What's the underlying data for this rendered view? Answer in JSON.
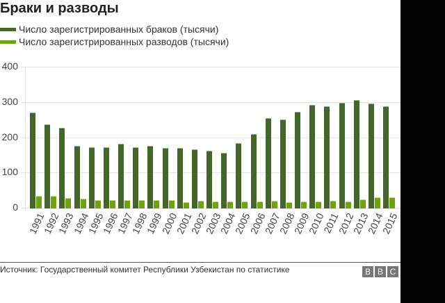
{
  "title": "Браки и разводы",
  "legend": [
    {
      "label": "Число зарегистрированных браков (тысячи)",
      "color": "#45662a"
    },
    {
      "label": "Число зарегистрированных разводов (тысячи)",
      "color": "#6ea30e"
    }
  ],
  "source": "Источник: Государственный комитет Республики Узбекистан по статистике",
  "logo": [
    "B",
    "B",
    "C"
  ],
  "chart_data": {
    "type": "bar",
    "title": "Браки и разводы",
    "xlabel": "",
    "ylabel": "",
    "ylim": [
      0,
      400
    ],
    "yticks": [
      0,
      100,
      200,
      300,
      400
    ],
    "grid": true,
    "legend_position": "top-left",
    "categories": [
      "1991",
      "1992",
      "1993",
      "1994",
      "1995",
      "1996",
      "1997",
      "1998",
      "1999",
      "2000",
      "2001",
      "2002",
      "2003",
      "2004",
      "2005",
      "2006",
      "2007",
      "2008",
      "2009",
      "2010",
      "2011",
      "2012",
      "2013",
      "2014",
      "2015"
    ],
    "series": [
      {
        "name": "Число зарегистрированных браков (тысячи)",
        "color": "#45662a",
        "values": [
          270,
          236,
          226,
          176,
          171,
          172,
          181,
          171,
          176,
          169,
          170,
          165,
          161,
          155,
          184,
          208,
          255,
          250,
          272,
          292,
          287,
          298,
          305,
          296,
          287
        ]
      },
      {
        "name": "Число зарегистрированных разводов (тысячи)",
        "color": "#6ea30e",
        "values": [
          34,
          34,
          28,
          25,
          21,
          21,
          22,
          22,
          22,
          21,
          16,
          19,
          18,
          18,
          17,
          17,
          19,
          16,
          17,
          18,
          19,
          17,
          24,
          29,
          29
        ]
      }
    ]
  }
}
